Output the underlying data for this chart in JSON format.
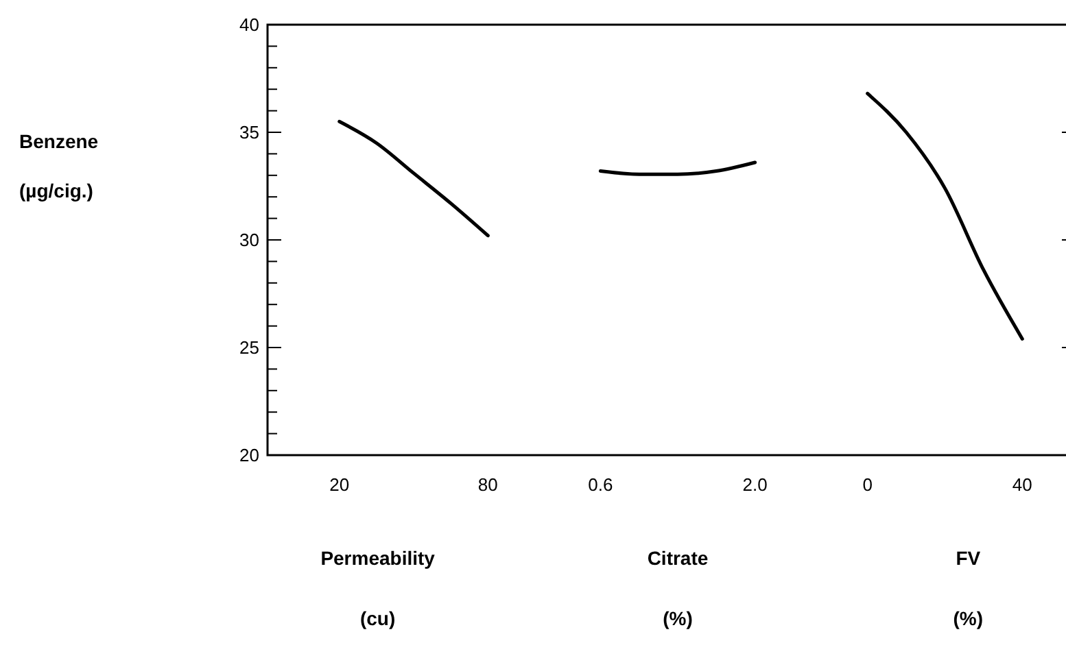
{
  "chart_data": [
    {
      "type": "line",
      "ylabel": "Benzene\n(µg/cig.)",
      "xlabel": "Permeability\n(cu)",
      "x": [
        20,
        35,
        50,
        65,
        80
      ],
      "xlim": [
        -9,
        80
      ],
      "xticks": [
        20,
        80
      ],
      "ylim": [
        20,
        40
      ],
      "yticks": [
        20,
        {
          "value": 21,
          "label": null
        },
        {
          "value": 22,
          "label": null
        },
        {
          "value": 23,
          "label": null
        },
        {
          "value": 24,
          "label": null
        },
        25,
        {
          "value": 26,
          "label": null
        },
        {
          "value": 27,
          "label": null
        },
        {
          "value": 28,
          "label": null
        },
        {
          "value": 29,
          "label": null
        },
        30,
        {
          "value": 31,
          "label": null
        },
        {
          "value": 32,
          "label": null
        },
        {
          "value": 33,
          "label": null
        },
        {
          "value": 34,
          "label": null
        },
        35,
        {
          "value": 36,
          "label": null
        },
        {
          "value": 37,
          "label": null
        },
        {
          "value": 38,
          "label": null
        },
        {
          "value": 39,
          "label": null
        },
        40
      ],
      "line_style": "solid",
      "marker": "none",
      "series": [
        {
          "color": "#000000",
          "values": [
            35.5,
            34.5,
            33.1,
            31.7,
            30.2
          ]
        }
      ]
    },
    {
      "type": "line",
      "xlabel": "Citrate\n(%)",
      "x": [
        0.6,
        0.95,
        1.3,
        1.65,
        2.0
      ],
      "xlim": [
        0.6,
        2.0
      ],
      "xticks": [
        {
          "value": 0.6,
          "label": "0.6"
        },
        {
          "value": 2.0,
          "label": "2.0"
        }
      ],
      "ylim": [
        20,
        40
      ],
      "tick_labels": "x",
      "line_style": "solid",
      "marker": "none",
      "series": [
        {
          "color": "#000000",
          "values": [
            33.2,
            33.05,
            33.05,
            33.2,
            33.6
          ]
        }
      ]
    },
    {
      "type": "line",
      "xlabel": "FV\n(%)",
      "x": [
        0,
        10,
        20,
        30,
        40
      ],
      "xlim": [
        0,
        52
      ],
      "xticks": [
        0,
        40
      ],
      "ylim": [
        20,
        40
      ],
      "tick_labels": "x",
      "line_style": "solid",
      "marker": "none",
      "series": [
        {
          "color": "#000000",
          "values": [
            36.8,
            35.0,
            32.4,
            28.6,
            25.4
          ]
        }
      ]
    }
  ]
}
